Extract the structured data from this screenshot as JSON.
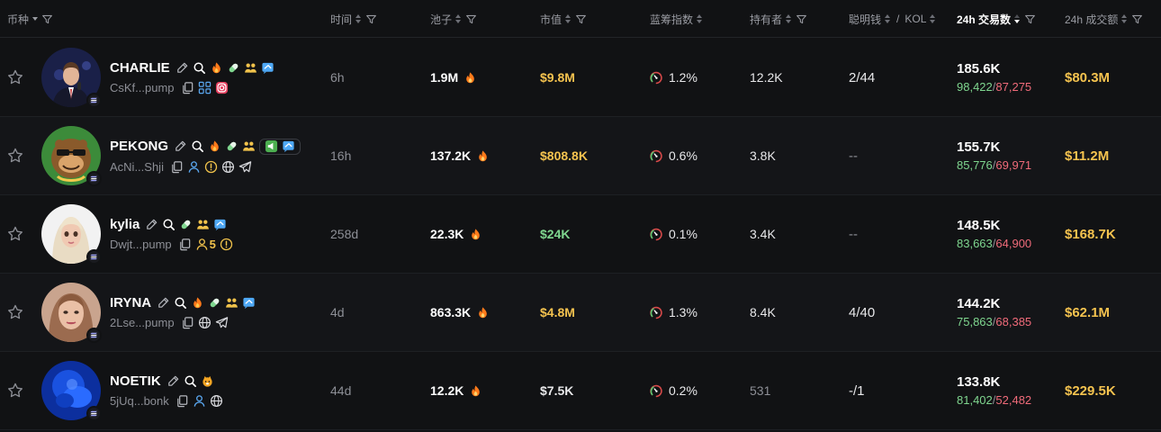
{
  "colors": {
    "background": "#111214",
    "text_primary": "#ffffff",
    "text_muted": "#8d8f96",
    "mcap_yellow": "#f5c34f",
    "mcap_green": "#7fd68f",
    "mcap_white": "#e8e8ea",
    "buy_green": "#7fd68f",
    "sell_red": "#f06b7a",
    "fire": "#ff7a1a",
    "volume_yellow": "#f5c34f"
  },
  "header": {
    "coin": "币种",
    "time": "时间",
    "pool": "池子",
    "mcap": "市值",
    "bluechip": "蓝筹指数",
    "holders": "持有者",
    "smart_money": "聪明钱",
    "separator": "/",
    "kol": "KOL",
    "tx24h": "24h 交易数",
    "vol24h": "24h 成交额"
  },
  "rows": [
    {
      "symbol": "CHARLIE",
      "address": "CsKf...pump",
      "age": "6h",
      "pool": "1.9M",
      "mcap": "$9.8M",
      "mcap_color": "yellow",
      "bluechip": "1.2%",
      "holders": "12.2K",
      "smart_kol": "2/44",
      "tx_total": "185.6K",
      "tx_buys": "98,422",
      "tx_sells": "87,275",
      "volume": "$80.3M",
      "badges": [
        "edit-icon",
        "search-icon",
        "flame-icon",
        "pill-icon",
        "group-icon",
        "chat-icon"
      ],
      "links": [
        "copy-icon",
        "people-icon",
        "instagram-icon"
      ]
    },
    {
      "symbol": "PEKONG",
      "address": "AcNi...Shji",
      "age": "16h",
      "pool": "137.2K",
      "mcap": "$808.8K",
      "mcap_color": "yellow",
      "bluechip": "0.6%",
      "holders": "3.8K",
      "smart_kol": "--",
      "tx_total": "155.7K",
      "tx_buys": "85,776",
      "tx_sells": "69,971",
      "volume": "$11.2M",
      "badges": [
        "edit-icon",
        "search-icon",
        "flame-icon",
        "pill-icon",
        "group-icon"
      ],
      "links": [
        "copy-icon",
        "person-icon",
        "warning-icon",
        "globe-icon",
        "telegram-icon"
      ]
    },
    {
      "symbol": "kylia",
      "address": "Dwjt...pump",
      "age": "258d",
      "pool": "22.3K",
      "mcap": "$24K",
      "mcap_color": "green",
      "bluechip": "0.1%",
      "holders": "3.4K",
      "smart_kol": "--",
      "tx_total": "148.5K",
      "tx_buys": "83,663",
      "tx_sells": "64,900",
      "volume": "$168.7K",
      "holder_count_badge": "5",
      "badges": [
        "edit-icon",
        "search-icon",
        "pill-icon",
        "group-icon",
        "chat-icon"
      ],
      "links": [
        "copy-icon",
        "person-icon",
        "warning-icon"
      ]
    },
    {
      "symbol": "IRYNA",
      "address": "2Lse...pump",
      "age": "4d",
      "pool": "863.3K",
      "mcap": "$4.8M",
      "mcap_color": "yellow",
      "bluechip": "1.3%",
      "holders": "8.4K",
      "smart_kol": "4/40",
      "tx_total": "144.2K",
      "tx_buys": "75,863",
      "tx_sells": "68,385",
      "volume": "$62.1M",
      "badges": [
        "edit-icon",
        "search-icon",
        "flame-icon",
        "pill-icon",
        "group-icon",
        "chat-icon"
      ],
      "links": [
        "copy-icon",
        "globe-icon",
        "telegram-icon"
      ]
    },
    {
      "symbol": "NOETIK",
      "address": "5jUq...bonk",
      "age": "44d",
      "pool": "12.2K",
      "mcap": "$7.5K",
      "mcap_color": "white",
      "bluechip": "0.2%",
      "holders": "531",
      "smart_kol": "-/1",
      "tx_total": "133.8K",
      "tx_buys": "81,402",
      "tx_sells": "52,482",
      "volume": "$229.5K",
      "badges": [
        "edit-icon",
        "search-icon",
        "bonk-icon"
      ],
      "links": [
        "copy-icon",
        "person-icon",
        "globe-icon"
      ]
    }
  ]
}
